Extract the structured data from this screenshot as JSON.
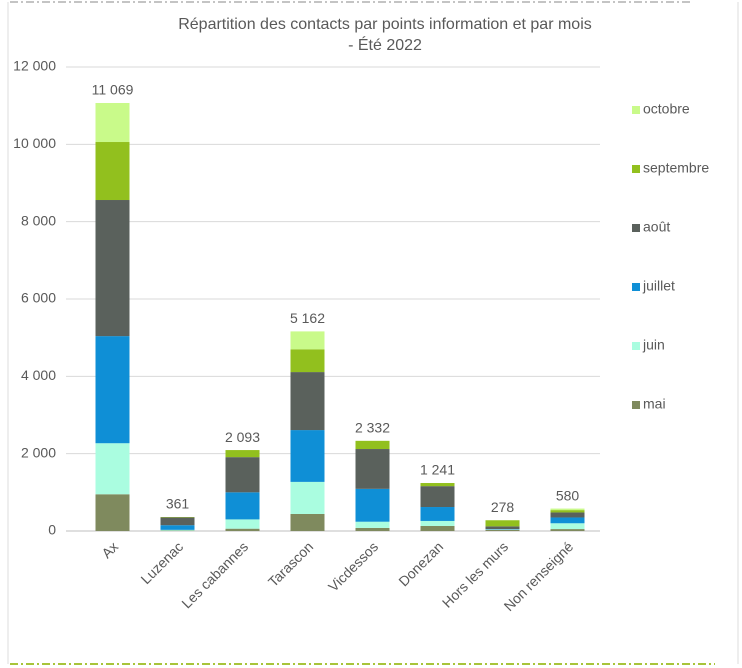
{
  "chart_data": {
    "type": "stacked_bar",
    "title": [
      "Répartition des contacts par points information et par mois",
      "- Été 2022"
    ],
    "categories": [
      "Ax",
      "Luzenac",
      "Les cabannes",
      "Tarascon",
      "Vicdessos",
      "Donezan",
      "Hors les murs",
      "Non renseigné"
    ],
    "series": [
      {
        "name": "mai",
        "color": "#7f8a5e",
        "values": [
          950,
          10,
          60,
          440,
          80,
          130,
          30,
          50
        ]
      },
      {
        "name": "juin",
        "color": "#aafde0",
        "values": [
          1320,
          20,
          240,
          830,
          160,
          130,
          10,
          150
        ]
      },
      {
        "name": "juillet",
        "color": "#0f8fd6",
        "values": [
          2770,
          120,
          700,
          1340,
          850,
          360,
          10,
          150
        ]
      },
      {
        "name": "août",
        "color": "#5a615c",
        "values": [
          3520,
          200,
          910,
          1500,
          1030,
          540,
          70,
          130
        ]
      },
      {
        "name": "septembre",
        "color": "#92c01e",
        "values": [
          1500,
          11,
          183,
          590,
          212,
          81,
          158,
          60
        ]
      },
      {
        "name": "octobre",
        "color": "#c9fa8a",
        "values": [
          1009,
          0,
          0,
          462,
          0,
          0,
          0,
          40
        ]
      }
    ],
    "total_labels": [
      "11 069",
      "361",
      "2 093",
      "5 162",
      "2 332",
      "1 241",
      "278",
      "580"
    ],
    "ylim": [
      0,
      12000
    ],
    "yticks": [
      0,
      {
        "value": 2000,
        "label": "2 000"
      },
      {
        "value": 4000,
        "label": "4 000"
      },
      {
        "value": 6000,
        "label": "6 000"
      },
      {
        "value": 8000,
        "label": "8 000"
      },
      {
        "value": 10000,
        "label": "10 000"
      },
      {
        "value": 12000,
        "label": "12 000"
      }
    ],
    "grid": true,
    "legend": "right"
  }
}
